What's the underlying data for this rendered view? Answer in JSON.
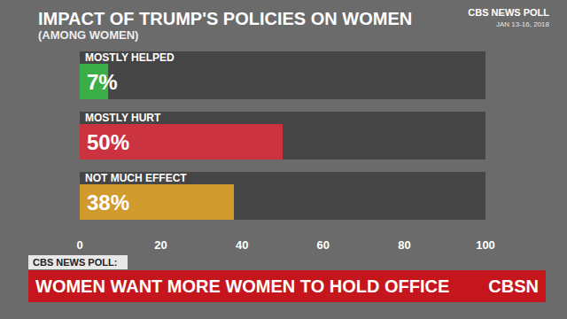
{
  "chart_data": {
    "type": "bar",
    "orientation": "horizontal",
    "title": "IMPACT OF TRUMP'S POLICIES ON WOMEN",
    "subtitle": "(AMONG WOMEN)",
    "categories": [
      "MOSTLY HELPED",
      "MOSTLY HURT",
      "NOT MUCH EFFECT"
    ],
    "values": [
      7,
      50,
      38
    ],
    "value_labels": [
      "7%",
      "50%",
      "38%"
    ],
    "colors": [
      "#3cae48",
      "#cc3340",
      "#d19a2c"
    ],
    "xlim": [
      0,
      100
    ],
    "xticks": [
      0,
      20,
      40,
      60,
      80,
      100
    ],
    "data_labels": true,
    "grid": false,
    "annotations": [
      "CBS NEWS POLL",
      "JAN 13-16, 2018",
      "CBS NEWS POLL:",
      "WOMEN WANT MORE WOMEN TO HOLD OFFICE",
      "CBSN"
    ]
  }
}
